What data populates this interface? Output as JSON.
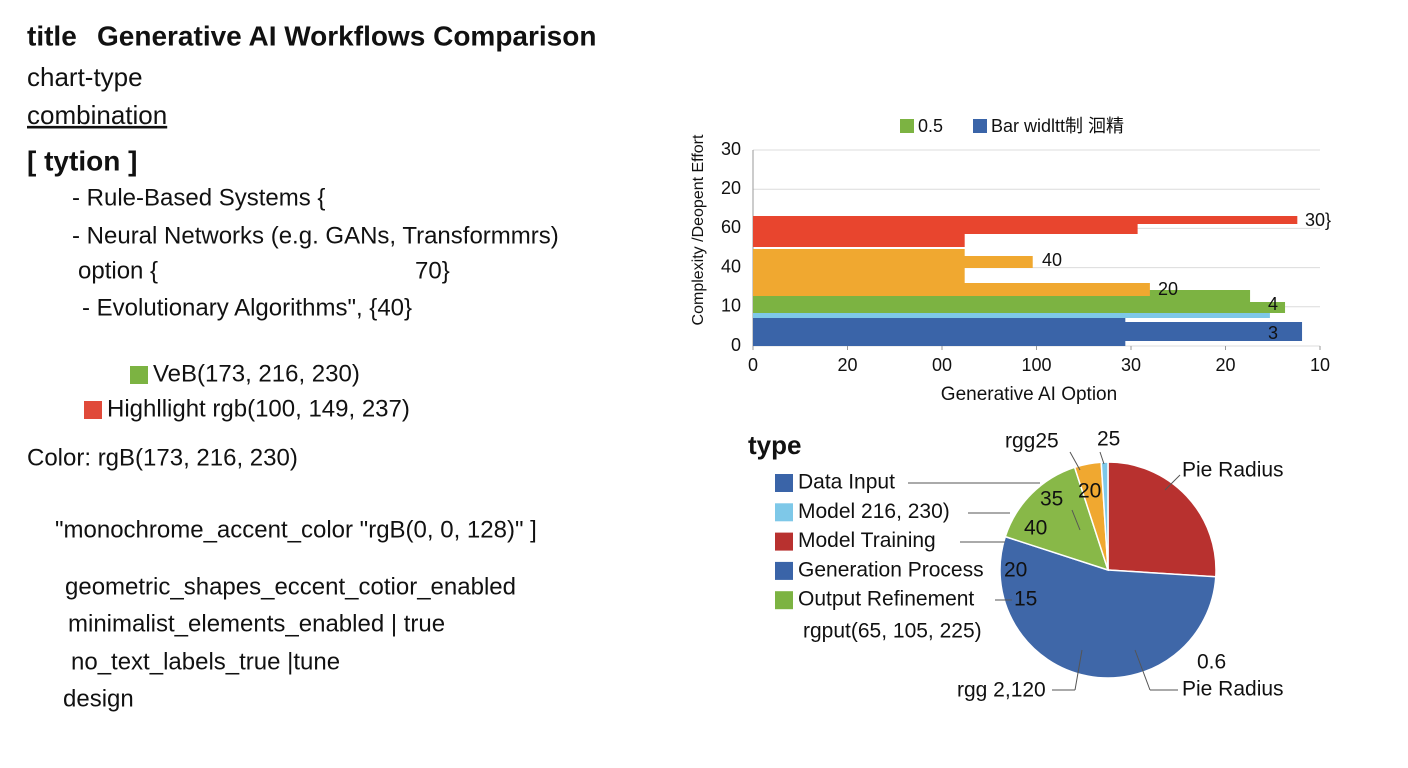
{
  "document": {
    "lines": [
      {
        "parts": [
          "title",
          "Generative AI Workflows Comparison"
        ]
      },
      {
        "parts": [
          "chart-type"
        ]
      },
      {
        "parts": [
          "combination"
        ]
      },
      {
        "parts": [
          "[ tytion ]"
        ]
      },
      {
        "parts": [
          "- Rule-Based Systems {"
        ]
      },
      {
        "parts": [
          "- Neural Networks (e.g. GANs, Transformmrs)"
        ]
      },
      {
        "parts": [
          "option {",
          "70}"
        ]
      },
      {
        "parts": [
          "- Evolutionary Algorithms\", {40}"
        ]
      },
      {
        "parts": [
          "VeB(173, 216, 230)"
        ],
        "swatch": "#7cb342"
      },
      {
        "parts": [
          "Highllight rgb(100, 149, 237)"
        ],
        "swatch": "#e04a3a"
      },
      {
        "parts": [
          "Color: rgB(173, 216, 230)"
        ]
      },
      {
        "parts": [
          "\"monochrome_accent_color \"rgB(0, 0, 128)\" ]"
        ]
      },
      {
        "parts": [
          "geometric_shapes_eccent_cotior_enabled"
        ]
      },
      {
        "parts": [
          "minimalist_elements_enabled | true"
        ]
      },
      {
        "parts": [
          "no_text_labels_true |tune"
        ]
      },
      {
        "parts": [
          "design"
        ]
      }
    ]
  },
  "chart_data": [
    {
      "type": "bar",
      "orientation": "horizontal",
      "xlabel": "Generative AI Option",
      "ylabel": "Complexity /Deopent Effort",
      "legend": [
        {
          "name": "0.5",
          "color": "#7cb342"
        },
        {
          "name": "Bar widltt制 洄精",
          "color": "#3a64a8"
        }
      ],
      "legend_position": "top",
      "grid": true,
      "xlim": [
        0,
        60
      ],
      "xticks": [
        0,
        {
          "value": 10,
          "label": "20"
        },
        {
          "value": 20,
          "label": "00"
        },
        {
          "value": 30,
          "label": "100"
        },
        {
          "value": 40,
          "label": "30"
        },
        {
          "value": 50,
          "label": "20"
        },
        {
          "value": 60,
          "label": "10"
        }
      ],
      "ylim": [
        0,
        50
      ],
      "yticks": [
        0,
        10,
        {
          "value": 20,
          "label": "40"
        },
        {
          "value": 30,
          "label": "60"
        },
        {
          "value": 40,
          "label": "20"
        },
        {
          "value": 50,
          "label": "30"
        }
      ],
      "series": [
        {
          "color": "#3a64a8",
          "values": [
            39.4,
            58.1
          ]
        },
        {
          "color": "#7ec8e8",
          "values": [
            54.7
          ]
        },
        {
          "color": "#7cb342",
          "values": [
            52.6,
            56.3
          ]
        },
        {
          "color": "#f0a830",
          "values": [
            22.4,
            29.6,
            42
          ]
        },
        {
          "color": "#e8452e",
          "values": [
            22.4,
            40.7,
            57.6
          ]
        }
      ],
      "annotations": [
        {
          "text": "30}",
          "color": "#d0402c"
        },
        {
          "text": "40",
          "color": "#f0a830"
        },
        {
          "text": "20",
          "color": "#f0a830"
        },
        {
          "text": "4",
          "color": "#7cb342"
        },
        {
          "text": "3",
          "color": "#ffffff"
        }
      ]
    },
    {
      "type": "pie",
      "title": "type",
      "values": [
        26,
        54,
        15,
        4,
        1
      ],
      "colors": [
        "#b8312f",
        "#3f67a8",
        "#88b848",
        "#f0a830",
        "#7ec8e8"
      ],
      "legend": [
        {
          "name": "Data Input",
          "color": "#3a64a8"
        },
        {
          "name": "Model 216, 230)",
          "color": "#7ec8e8"
        },
        {
          "name": "Model Training",
          "color": "#b8312f"
        },
        {
          "name": "Generation Process",
          "color": "#3a64a8"
        },
        {
          "name": "Output Refinement",
          "color": "#7cb342"
        }
      ],
      "annotations": [
        {
          "text": "rgg25"
        },
        {
          "text": "25"
        },
        {
          "text": "Pie Radius"
        },
        {
          "text": "35"
        },
        {
          "text": "20"
        },
        {
          "text": "40"
        },
        {
          "text": "20"
        },
        {
          "text": "15"
        },
        {
          "text": "rgput(65, 105, 225)"
        },
        {
          "text": "0.6"
        },
        {
          "text": "Pie Radius"
        },
        {
          "text": "rgg 2,120"
        }
      ]
    }
  ]
}
